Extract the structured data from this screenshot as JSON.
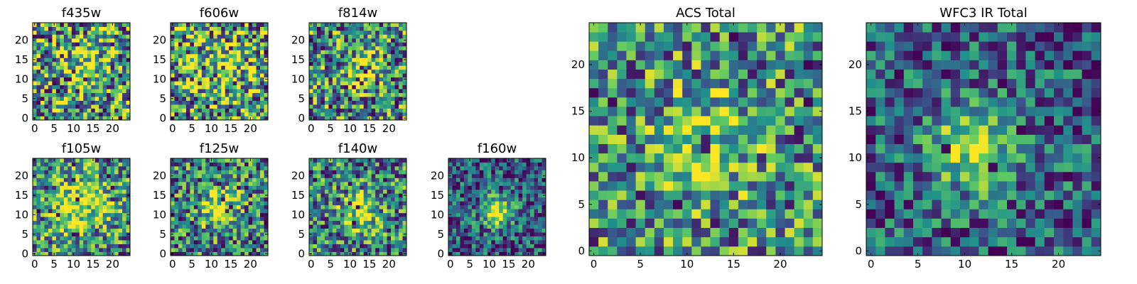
{
  "chart_data": [
    {
      "type": "heatmap",
      "title": "f435w",
      "xticks": [
        0,
        5,
        10,
        15,
        20
      ],
      "yticks": [
        0,
        5,
        10,
        15,
        20
      ],
      "extent": [
        -0.5,
        24.5
      ],
      "grid_size": 25,
      "cells": 25,
      "seed": 11,
      "noise": 0.55,
      "blob": 0.25,
      "sigma": 5,
      "center": [
        12,
        13
      ],
      "bias": 0.55,
      "low_frac": 0.05
    },
    {
      "type": "heatmap",
      "title": "f606w",
      "xticks": [
        0,
        5,
        10,
        15,
        20
      ],
      "yticks": [
        0,
        5,
        10,
        15,
        20
      ],
      "extent": [
        -0.5,
        24.5
      ],
      "grid_size": 25,
      "cells": 25,
      "seed": 23,
      "noise": 0.55,
      "blob": 0.3,
      "sigma": 5,
      "center": [
        12,
        12
      ],
      "bias": 0.55,
      "low_frac": 0.05
    },
    {
      "type": "heatmap",
      "title": "f814w",
      "xticks": [
        0,
        5,
        10,
        15,
        20
      ],
      "yticks": [
        0,
        5,
        10,
        15,
        20
      ],
      "extent": [
        -0.5,
        24.5
      ],
      "grid_size": 25,
      "cells": 25,
      "seed": 37,
      "noise": 0.5,
      "blob": 0.45,
      "sigma": 3,
      "center": [
        13,
        12
      ],
      "bias": 0.5,
      "low_frac": 0.05
    },
    {
      "type": "heatmap",
      "title": "f105w",
      "xticks": [
        0,
        5,
        10,
        15,
        20
      ],
      "yticks": [
        0,
        5,
        10,
        15,
        20
      ],
      "extent": [
        -0.5,
        24.5
      ],
      "grid_size": 25,
      "cells": 25,
      "seed": 41,
      "noise": 0.45,
      "blob": 0.45,
      "sigma": 5,
      "center": [
        11,
        12
      ],
      "bias": 0.5,
      "low_frac": 0.04
    },
    {
      "type": "heatmap",
      "title": "f125w",
      "xticks": [
        0,
        5,
        10,
        15,
        20
      ],
      "yticks": [
        0,
        5,
        10,
        15,
        20
      ],
      "extent": [
        -0.5,
        24.5
      ],
      "grid_size": 25,
      "cells": 25,
      "seed": 53,
      "noise": 0.45,
      "blob": 0.5,
      "sigma": 3.5,
      "center": [
        12,
        12
      ],
      "bias": 0.45,
      "low_frac": 0.05
    },
    {
      "type": "heatmap",
      "title": "f140w",
      "xticks": [
        0,
        5,
        10,
        15,
        20
      ],
      "yticks": [
        0,
        5,
        10,
        15,
        20
      ],
      "extent": [
        -0.5,
        24.5
      ],
      "grid_size": 25,
      "cells": 25,
      "seed": 67,
      "noise": 0.45,
      "blob": 0.5,
      "sigma": 3.5,
      "center": [
        13,
        11
      ],
      "bias": 0.45,
      "low_frac": 0.04
    },
    {
      "type": "heatmap",
      "title": "f160w",
      "xticks": [
        0,
        5,
        10,
        15,
        20
      ],
      "yticks": [
        0,
        5,
        10,
        15,
        20
      ],
      "extent": [
        -0.5,
        24.5
      ],
      "grid_size": 25,
      "cells": 25,
      "seed": 79,
      "noise": 0.35,
      "blob": 0.6,
      "sigma": 3,
      "center": [
        12,
        11
      ],
      "bias": 0.3,
      "low_frac": 0.05
    },
    {
      "type": "heatmap",
      "title": "ACS Total",
      "xticks": [
        0,
        5,
        10,
        15,
        20
      ],
      "yticks": [
        0,
        5,
        10,
        15,
        20
      ],
      "extent": [
        -0.5,
        24.5
      ],
      "grid_size": 25,
      "cells": 25,
      "seed": 83,
      "noise": 0.45,
      "blob": 0.35,
      "sigma": 3.5,
      "center": [
        12,
        12
      ],
      "bias": 0.5,
      "low_frac": 0.03
    },
    {
      "type": "heatmap",
      "title": "WFC3 IR Total",
      "xticks": [
        0,
        5,
        10,
        15,
        20
      ],
      "yticks": [
        0,
        5,
        10,
        15,
        20
      ],
      "extent": [
        -0.5,
        24.5
      ],
      "grid_size": 25,
      "cells": 25,
      "seed": 97,
      "noise": 0.35,
      "blob": 0.6,
      "sigma": 3.5,
      "center": [
        11,
        11
      ],
      "bias": 0.3,
      "low_frac": 0.04
    }
  ],
  "colormap": [
    "#440154",
    "#3b528b",
    "#21918c",
    "#5ec962",
    "#fde725"
  ]
}
